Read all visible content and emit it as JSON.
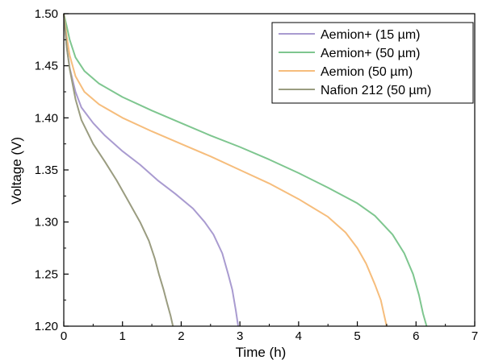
{
  "chart_data": {
    "type": "line",
    "xlabel": "Time (h)",
    "ylabel": "Voltage (V)",
    "xlim": [
      0,
      7
    ],
    "ylim": [
      1.2,
      1.5
    ],
    "xticks": [
      "0",
      "1",
      "2",
      "3",
      "4",
      "5",
      "6",
      "7"
    ],
    "yticks": [
      "1.20",
      "1.25",
      "1.30",
      "1.35",
      "1.40",
      "1.45",
      "1.50"
    ],
    "grid": false,
    "legend_position": "top-right",
    "series": [
      {
        "name": "Aemion+ (15 µm)",
        "color": "#a99bd0",
        "x": [
          0,
          0.05,
          0.1,
          0.2,
          0.3,
          0.5,
          0.7,
          1.0,
          1.3,
          1.6,
          1.9,
          2.2,
          2.4,
          2.55,
          2.7,
          2.8,
          2.87,
          2.93,
          2.97
        ],
        "y": [
          1.5,
          1.468,
          1.448,
          1.425,
          1.41,
          1.395,
          1.383,
          1.368,
          1.355,
          1.34,
          1.327,
          1.313,
          1.3,
          1.288,
          1.27,
          1.25,
          1.235,
          1.215,
          1.2
        ]
      },
      {
        "name": "Aemion+ (50 µm)",
        "color": "#7ec68f",
        "x": [
          0,
          0.05,
          0.1,
          0.2,
          0.35,
          0.6,
          1.0,
          1.5,
          2.0,
          2.5,
          3.0,
          3.5,
          4.0,
          4.5,
          5.0,
          5.3,
          5.6,
          5.8,
          5.95,
          6.05,
          6.12,
          6.18
        ],
        "y": [
          1.5,
          1.488,
          1.475,
          1.458,
          1.445,
          1.433,
          1.42,
          1.407,
          1.395,
          1.383,
          1.372,
          1.36,
          1.347,
          1.333,
          1.318,
          1.306,
          1.288,
          1.27,
          1.25,
          1.23,
          1.212,
          1.2
        ]
      },
      {
        "name": "Aemion (50 µm)",
        "color": "#f6bd7c",
        "x": [
          0,
          0.05,
          0.1,
          0.2,
          0.35,
          0.6,
          1.0,
          1.5,
          2.0,
          2.5,
          3.0,
          3.5,
          4.0,
          4.5,
          4.8,
          5.0,
          5.15,
          5.3,
          5.4,
          5.46,
          5.5
        ],
        "y": [
          1.5,
          1.478,
          1.46,
          1.44,
          1.425,
          1.413,
          1.4,
          1.387,
          1.375,
          1.363,
          1.35,
          1.337,
          1.322,
          1.305,
          1.29,
          1.275,
          1.26,
          1.24,
          1.225,
          1.21,
          1.2
        ]
      },
      {
        "name": "Nafion 212 (50 µm)",
        "color": "#9a9c80",
        "x": [
          0,
          0.05,
          0.1,
          0.2,
          0.3,
          0.5,
          0.7,
          0.9,
          1.1,
          1.3,
          1.45,
          1.55,
          1.62,
          1.7,
          1.76,
          1.82,
          1.86
        ],
        "y": [
          1.5,
          1.468,
          1.447,
          1.418,
          1.398,
          1.375,
          1.358,
          1.34,
          1.32,
          1.3,
          1.282,
          1.265,
          1.25,
          1.235,
          1.222,
          1.21,
          1.2
        ]
      }
    ]
  }
}
